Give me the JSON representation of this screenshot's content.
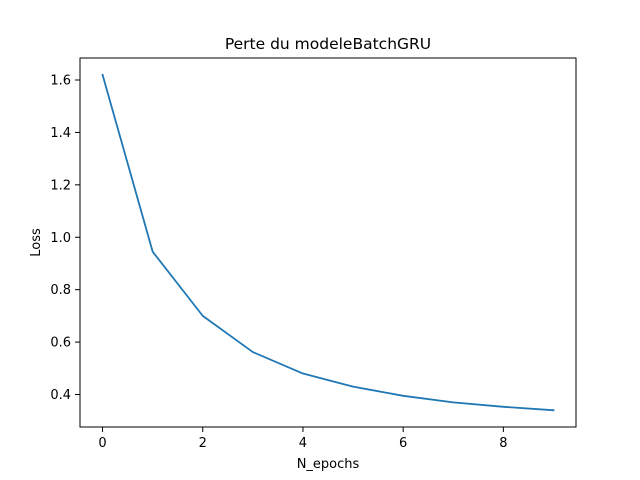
{
  "chart_data": {
    "type": "line",
    "title": "Perte du modeleBatchGRU",
    "xlabel": "N_epochs",
    "ylabel": "Loss",
    "x": [
      0,
      1,
      2,
      3,
      4,
      5,
      6,
      7,
      8,
      9
    ],
    "series": [
      {
        "values": [
          1.62,
          0.945,
          0.7,
          0.562,
          0.48,
          0.43,
          0.395,
          0.37,
          0.353,
          0.34
        ],
        "color": "#1f77b4"
      }
    ],
    "xlim": [
      -0.45,
      9.45
    ],
    "ylim": [
      0.276,
      1.684
    ],
    "xticks": [
      0,
      2,
      4,
      6,
      8
    ],
    "yticks": [
      0.4,
      0.6,
      0.8,
      1.0,
      1.2,
      1.4,
      1.6
    ],
    "xtick_labels": [
      "0",
      "2",
      "4",
      "6",
      "8"
    ],
    "ytick_labels": [
      "0.4",
      "0.6",
      "0.8",
      "1.0",
      "1.2",
      "1.4",
      "1.6"
    ],
    "grid": false,
    "legend": "none"
  }
}
